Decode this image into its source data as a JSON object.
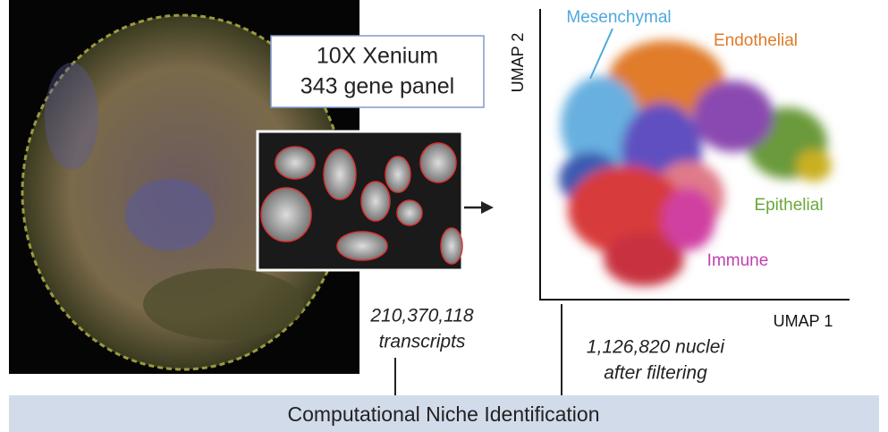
{
  "panel": {
    "line1": "10X Xenium",
    "line2": "343 gene panel"
  },
  "transcripts": {
    "count": "210,370,118",
    "label": "transcripts"
  },
  "umap": {
    "y_axis": "UMAP 2",
    "x_axis": "UMAP 1",
    "clusters": [
      "Mesenchymal",
      "Endothelial",
      "Epithelial",
      "Immune"
    ]
  },
  "nuclei": {
    "count": "1,126,820 nuclei",
    "label": "after filtering"
  },
  "banner": "Computational Niche Identification"
}
